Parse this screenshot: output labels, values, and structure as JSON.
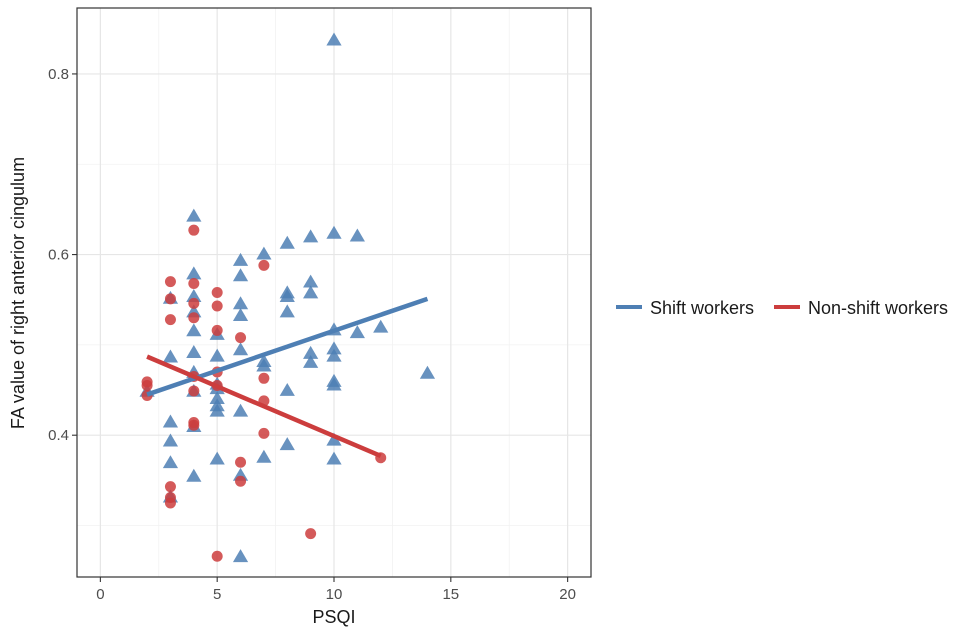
{
  "chart_data": {
    "type": "scatter",
    "xlabel": "PSQI",
    "ylabel": "FA value of right anterior cingulum",
    "xlim": [
      -1,
      21
    ],
    "ylim": [
      0.243,
      0.873
    ],
    "x_ticks": [
      0,
      5,
      10,
      15,
      20
    ],
    "x_tick_labels": [
      "0",
      "5",
      "10",
      "15",
      "20"
    ],
    "y_ticks": [
      0.4,
      0.6,
      0.8
    ],
    "y_tick_labels": [
      "0.4",
      "0.6",
      "0.8"
    ],
    "grid": true,
    "legend_position": "right",
    "series": [
      {
        "name": "Shift workers",
        "color": "#4E7FB4",
        "marker": "triangle",
        "points": [
          [
            2,
            0.448
          ],
          [
            3,
            0.331
          ],
          [
            3,
            0.369
          ],
          [
            3,
            0.393
          ],
          [
            3,
            0.414
          ],
          [
            3,
            0.486
          ],
          [
            3,
            0.551
          ],
          [
            4,
            0.354
          ],
          [
            4,
            0.409
          ],
          [
            4,
            0.448
          ],
          [
            4,
            0.469
          ],
          [
            4,
            0.491
          ],
          [
            4,
            0.515
          ],
          [
            4,
            0.536
          ],
          [
            4,
            0.553
          ],
          [
            4,
            0.578
          ],
          [
            4,
            0.642
          ],
          [
            5,
            0.373
          ],
          [
            5,
            0.426
          ],
          [
            5,
            0.432
          ],
          [
            5,
            0.44
          ],
          [
            5,
            0.451
          ],
          [
            5,
            0.456
          ],
          [
            5,
            0.487
          ],
          [
            5,
            0.511
          ],
          [
            6,
            0.265
          ],
          [
            6,
            0.355
          ],
          [
            6,
            0.426
          ],
          [
            6,
            0.494
          ],
          [
            6,
            0.532
          ],
          [
            6,
            0.545
          ],
          [
            6,
            0.576
          ],
          [
            6,
            0.593
          ],
          [
            7,
            0.375
          ],
          [
            7,
            0.476
          ],
          [
            7,
            0.481
          ],
          [
            7,
            0.6
          ],
          [
            8,
            0.389
          ],
          [
            8,
            0.449
          ],
          [
            8,
            0.536
          ],
          [
            8,
            0.553
          ],
          [
            8,
            0.557
          ],
          [
            8,
            0.612
          ],
          [
            9,
            0.48
          ],
          [
            9,
            0.49
          ],
          [
            9,
            0.557
          ],
          [
            9,
            0.569
          ],
          [
            9,
            0.619
          ],
          [
            10,
            0.373
          ],
          [
            10,
            0.394
          ],
          [
            10,
            0.455
          ],
          [
            10,
            0.459
          ],
          [
            10,
            0.487
          ],
          [
            10,
            0.495
          ],
          [
            10,
            0.516
          ],
          [
            10,
            0.623
          ],
          [
            10,
            0.837
          ],
          [
            11,
            0.513
          ],
          [
            11,
            0.62
          ],
          [
            12,
            0.519
          ],
          [
            14,
            0.468
          ]
        ],
        "fit_line": [
          [
            2,
            0.445
          ],
          [
            14,
            0.551
          ]
        ]
      },
      {
        "name": "Non-shift workers",
        "color": "#CC3D3D",
        "marker": "circle",
        "points": [
          [
            2,
            0.444
          ],
          [
            2,
            0.455
          ],
          [
            2,
            0.459
          ],
          [
            3,
            0.325
          ],
          [
            3,
            0.331
          ],
          [
            3,
            0.343
          ],
          [
            3,
            0.528
          ],
          [
            3,
            0.551
          ],
          [
            3,
            0.57
          ],
          [
            4,
            0.411
          ],
          [
            4,
            0.414
          ],
          [
            4,
            0.449
          ],
          [
            4,
            0.465
          ],
          [
            4,
            0.53
          ],
          [
            4,
            0.546
          ],
          [
            4,
            0.568
          ],
          [
            4,
            0.627
          ],
          [
            5,
            0.266
          ],
          [
            5,
            0.455
          ],
          [
            5,
            0.47
          ],
          [
            5,
            0.516
          ],
          [
            5,
            0.543
          ],
          [
            5,
            0.558
          ],
          [
            6,
            0.349
          ],
          [
            6,
            0.37
          ],
          [
            6,
            0.508
          ],
          [
            7,
            0.402
          ],
          [
            7,
            0.438
          ],
          [
            7,
            0.463
          ],
          [
            7,
            0.588
          ],
          [
            9,
            0.291
          ],
          [
            12,
            0.375
          ]
        ],
        "fit_line": [
          [
            2,
            0.487
          ],
          [
            12,
            0.377
          ]
        ]
      }
    ]
  }
}
